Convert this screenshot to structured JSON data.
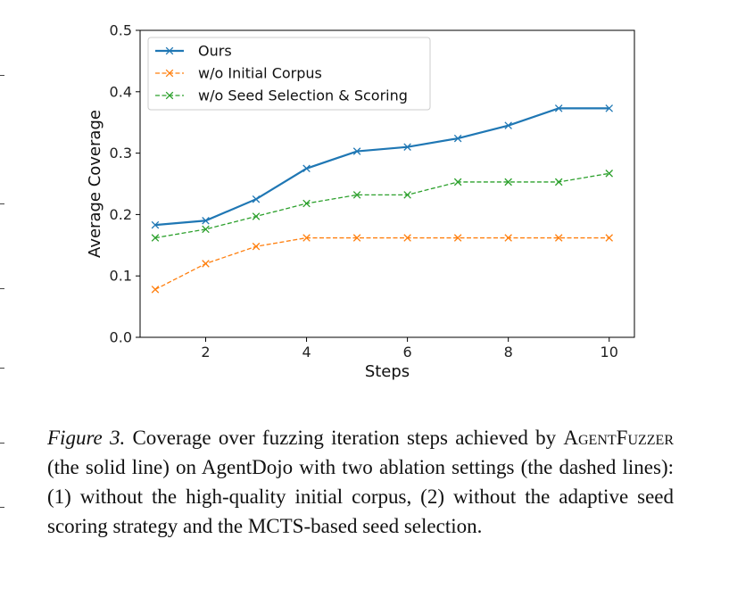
{
  "chart_data": {
    "type": "line",
    "xlabel": "Steps",
    "ylabel": "Average Coverage",
    "xlim": [
      0.7,
      10.5
    ],
    "ylim": [
      0.0,
      0.5
    ],
    "x_ticks": [
      2,
      4,
      6,
      8,
      10
    ],
    "y_ticks": [
      "0.0",
      "0.1",
      "0.2",
      "0.3",
      "0.4",
      "0.5"
    ],
    "legend_position": "top-left",
    "grid": false,
    "x": [
      1,
      2,
      3,
      4,
      5,
      6,
      7,
      8,
      9,
      10
    ],
    "series": [
      {
        "name": "Ours",
        "color": "#1f77b4",
        "style": "solid",
        "marker": "x",
        "values": [
          0.183,
          0.19,
          0.225,
          0.275,
          0.303,
          0.31,
          0.324,
          0.345,
          0.373,
          0.373
        ]
      },
      {
        "name": "w/o Initial Corpus",
        "color": "#ff7f0e",
        "style": "dashed",
        "marker": "x",
        "values": [
          0.078,
          0.12,
          0.148,
          0.162,
          0.162,
          0.162,
          0.162,
          0.162,
          0.162,
          0.162
        ]
      },
      {
        "name": "w/o Seed Selection & Scoring",
        "color": "#2ca02c",
        "style": "dashed",
        "marker": "x",
        "values": [
          0.162,
          0.176,
          0.197,
          0.218,
          0.232,
          0.232,
          0.253,
          0.253,
          0.253,
          0.267
        ]
      }
    ]
  },
  "caption": {
    "label": "Figure 3.",
    "text_before": " Coverage over fuzzing iteration steps achieved by ",
    "system_name": "AgentFuzzer",
    "text_after": " (the solid line) on AgentDojo with two ablation settings (the dashed lines): (1) without the high-quality initial corpus, (2) without the adaptive seed scoring strategy and the MCTS-based seed selection."
  }
}
